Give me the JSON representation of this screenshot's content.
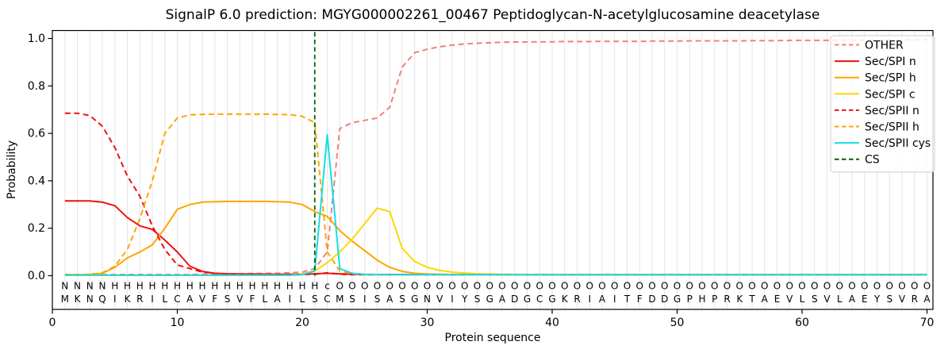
{
  "chart_data": {
    "type": "line",
    "title": "SignalP 6.0 prediction: MGYG000002261_00467 Peptidoglycan-N-acetylglucosamine deacetylase",
    "xlabel": "Protein sequence",
    "ylabel": "Probability",
    "xticks": [
      0,
      10,
      20,
      30,
      40,
      50,
      60,
      70
    ],
    "yticks": [
      0.0,
      0.2,
      0.4,
      0.6,
      0.8,
      1.0
    ],
    "xlim": [
      0,
      70.5
    ],
    "ylim": [
      -0.14,
      1.03
    ],
    "grid": "vertical gridline at every residue position 1-70",
    "legend_position": "upper right",
    "x_start": 1,
    "sequence": "MKNQIKRILCAVFSVFLAILSCMSISASGNVIYSGADGCGKRIAITFDDGPHPRKTAEVLSVLAEYSVRA",
    "region_annotation": "NNNNHHHHHHHHHHHHHHHHHcOOOOOOOOOOOOOOOOOOOOOOOOOOOOOOOOOOOOOOOOOOOOOOOO",
    "annotation_colors": {
      "N": "#ee1111",
      "H": "#ffa500",
      "c": "#19dbe6",
      "O": "#8a8a8a"
    },
    "sequence_color": "#1a1a1a",
    "gridline_color": "#e6e6e6",
    "cs_position": 21,
    "series": [
      {
        "name": "OTHER",
        "color": "#f08080",
        "style": "dashed",
        "values": [
          0.005,
          0.005,
          0.005,
          0.005,
          0.005,
          0.005,
          0.005,
          0.005,
          0.005,
          0.005,
          0.005,
          0.006,
          0.007,
          0.008,
          0.008,
          0.009,
          0.01,
          0.01,
          0.012,
          0.015,
          0.03,
          0.1,
          0.62,
          0.645,
          0.655,
          0.665,
          0.71,
          0.88,
          0.94,
          0.955,
          0.965,
          0.972,
          0.977,
          0.98,
          0.982,
          0.984,
          0.985,
          0.985,
          0.986,
          0.986,
          0.987,
          0.987,
          0.987,
          0.988,
          0.988,
          0.988,
          0.988,
          0.989,
          0.989,
          0.989,
          0.99,
          0.99,
          0.99,
          0.99,
          0.99,
          0.991,
          0.991,
          0.991,
          0.992,
          0.992,
          0.992,
          0.992,
          0.993,
          0.993,
          0.993,
          0.993,
          0.994,
          0.994,
          0.994,
          0.994
        ]
      },
      {
        "name": "Sec/SPI n",
        "color": "#ee1111",
        "style": "solid",
        "values": [
          0.315,
          0.315,
          0.315,
          0.31,
          0.295,
          0.245,
          0.21,
          0.195,
          0.15,
          0.1,
          0.04,
          0.018,
          0.01,
          0.008,
          0.007,
          0.007,
          0.006,
          0.006,
          0.006,
          0.006,
          0.008,
          0.01,
          0.008,
          0.006,
          0.005,
          0.005,
          0.005,
          0.005,
          0.005,
          0.005,
          0.005,
          0.005,
          0.005,
          0.005,
          0.005,
          0.005,
          0.005,
          0.005,
          0.005,
          0.005,
          0.005,
          0.005,
          0.005,
          0.005,
          0.005,
          0.005,
          0.005,
          0.005,
          0.005,
          0.005,
          0.005,
          0.005,
          0.005,
          0.005,
          0.005,
          0.005,
          0.005,
          0.005,
          0.005,
          0.005,
          0.005,
          0.005,
          0.005,
          0.005,
          0.005,
          0.005,
          0.005,
          0.005,
          0.005,
          0.005
        ]
      },
      {
        "name": "Sec/SPI h",
        "color": "#ffa500",
        "style": "solid",
        "values": [
          0.004,
          0.004,
          0.005,
          0.01,
          0.035,
          0.075,
          0.1,
          0.13,
          0.2,
          0.28,
          0.3,
          0.31,
          0.312,
          0.313,
          0.313,
          0.313,
          0.313,
          0.312,
          0.31,
          0.3,
          0.27,
          0.25,
          0.19,
          0.145,
          0.105,
          0.065,
          0.035,
          0.018,
          0.01,
          0.007,
          0.006,
          0.005,
          0.005,
          0.005,
          0.005,
          0.005,
          0.005,
          0.005,
          0.005,
          0.005,
          0.005,
          0.005,
          0.005,
          0.005,
          0.005,
          0.005,
          0.005,
          0.005,
          0.005,
          0.005,
          0.005,
          0.005,
          0.005,
          0.005,
          0.005,
          0.005,
          0.005,
          0.005,
          0.005,
          0.005,
          0.005,
          0.005,
          0.005,
          0.005,
          0.005,
          0.005,
          0.005,
          0.005,
          0.005,
          0.005
        ]
      },
      {
        "name": "Sec/SPI c",
        "color": "#ffd700",
        "style": "solid",
        "values": [
          0.002,
          0.002,
          0.002,
          0.002,
          0.002,
          0.002,
          0.002,
          0.002,
          0.002,
          0.002,
          0.002,
          0.002,
          0.002,
          0.002,
          0.002,
          0.002,
          0.002,
          0.002,
          0.002,
          0.008,
          0.02,
          0.055,
          0.1,
          0.155,
          0.22,
          0.285,
          0.27,
          0.115,
          0.06,
          0.035,
          0.022,
          0.015,
          0.011,
          0.008,
          0.007,
          0.006,
          0.005,
          0.005,
          0.004,
          0.004,
          0.004,
          0.004,
          0.004,
          0.004,
          0.004,
          0.004,
          0.004,
          0.004,
          0.004,
          0.004,
          0.004,
          0.004,
          0.004,
          0.004,
          0.004,
          0.004,
          0.004,
          0.004,
          0.004,
          0.004,
          0.004,
          0.004,
          0.004,
          0.004,
          0.004,
          0.004,
          0.004,
          0.004,
          0.004,
          0.004
        ]
      },
      {
        "name": "Sec/SPII n",
        "color": "#ee1111",
        "style": "dashed",
        "values": [
          0.685,
          0.685,
          0.675,
          0.63,
          0.54,
          0.42,
          0.335,
          0.21,
          0.11,
          0.045,
          0.03,
          0.015,
          0.01,
          0.008,
          0.007,
          0.006,
          0.006,
          0.005,
          0.005,
          0.005,
          0.006,
          0.012,
          0.006,
          0.004,
          0.004,
          0.004,
          0.004,
          0.004,
          0.004,
          0.004,
          0.004,
          0.004,
          0.004,
          0.004,
          0.004,
          0.004,
          0.004,
          0.004,
          0.004,
          0.004,
          0.004,
          0.004,
          0.004,
          0.004,
          0.004,
          0.004,
          0.004,
          0.004,
          0.004,
          0.004,
          0.004,
          0.004,
          0.004,
          0.004,
          0.004,
          0.004,
          0.004,
          0.004,
          0.004,
          0.004,
          0.004,
          0.004,
          0.004,
          0.004,
          0.004,
          0.004,
          0.004,
          0.004,
          0.004,
          0.004
        ]
      },
      {
        "name": "Sec/SPII h",
        "color": "#ffa500",
        "style": "dashed",
        "values": [
          0.004,
          0.004,
          0.006,
          0.012,
          0.04,
          0.11,
          0.24,
          0.4,
          0.6,
          0.665,
          0.678,
          0.68,
          0.681,
          0.681,
          0.681,
          0.681,
          0.681,
          0.68,
          0.679,
          0.672,
          0.645,
          0.1,
          0.02,
          0.008,
          0.004,
          0.004,
          0.004,
          0.004,
          0.004,
          0.004,
          0.004,
          0.004,
          0.004,
          0.004,
          0.004,
          0.004,
          0.004,
          0.004,
          0.004,
          0.004,
          0.004,
          0.004,
          0.004,
          0.004,
          0.004,
          0.004,
          0.004,
          0.004,
          0.004,
          0.004,
          0.004,
          0.004,
          0.004,
          0.004,
          0.004,
          0.004,
          0.004,
          0.004,
          0.004,
          0.004,
          0.004,
          0.004,
          0.004,
          0.004,
          0.004,
          0.004,
          0.004,
          0.004,
          0.004,
          0.004
        ]
      },
      {
        "name": "Sec/SPII cys",
        "color": "#19dbe6",
        "style": "solid",
        "values": [
          0.002,
          0.002,
          0.002,
          0.002,
          0.002,
          0.002,
          0.002,
          0.002,
          0.002,
          0.002,
          0.002,
          0.002,
          0.002,
          0.002,
          0.002,
          0.002,
          0.002,
          0.002,
          0.002,
          0.004,
          0.02,
          0.595,
          0.03,
          0.01,
          0.006,
          0.005,
          0.004,
          0.004,
          0.004,
          0.004,
          0.004,
          0.004,
          0.004,
          0.004,
          0.004,
          0.004,
          0.004,
          0.004,
          0.004,
          0.004,
          0.004,
          0.004,
          0.004,
          0.004,
          0.004,
          0.004,
          0.004,
          0.004,
          0.004,
          0.004,
          0.004,
          0.004,
          0.004,
          0.004,
          0.004,
          0.004,
          0.004,
          0.004,
          0.004,
          0.004,
          0.004,
          0.004,
          0.004,
          0.004,
          0.004,
          0.004,
          0.004,
          0.004,
          0.004,
          0.004
        ]
      },
      {
        "name": "CS",
        "color": "#006400",
        "style": "dashed",
        "vertical_x": 21
      }
    ]
  }
}
